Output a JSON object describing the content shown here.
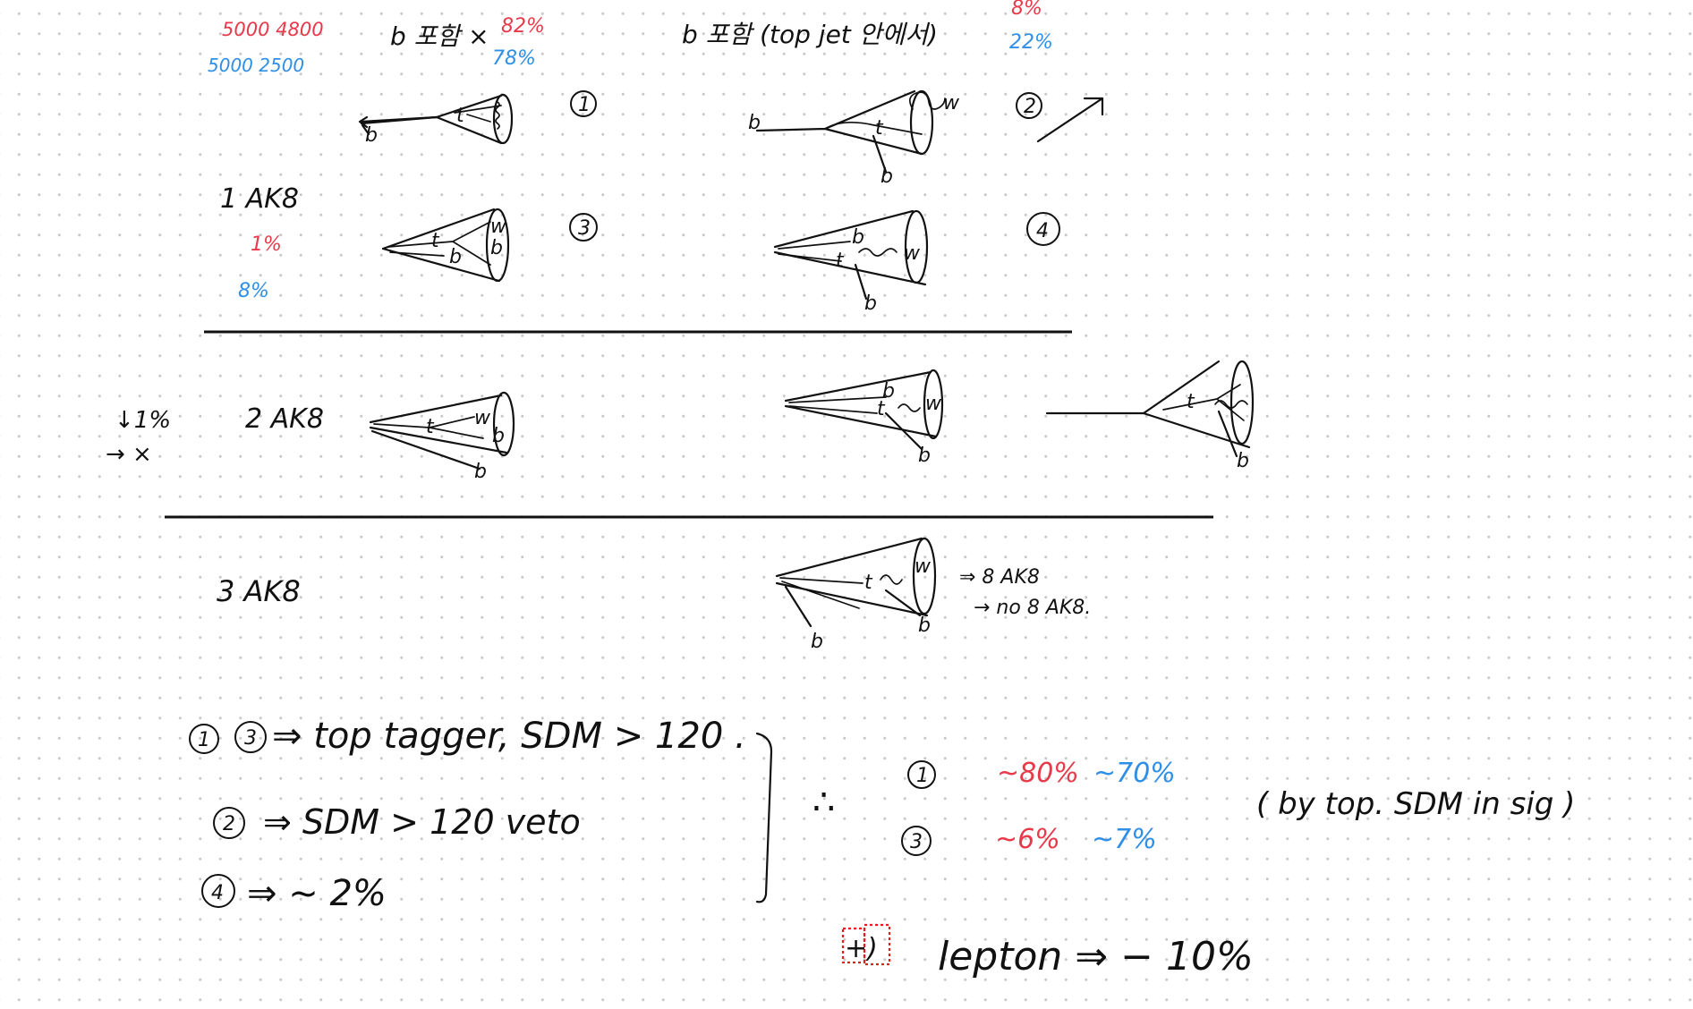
{
  "header": {
    "red_counts": "5000 4800",
    "blue_counts": "5000 2500",
    "col1_title": "b 포함 ×",
    "col1_red": "82%",
    "col1_blue": "78%",
    "col2_title": "b 포함 (top jet 안에서)",
    "col2_red": "8%",
    "col2_blue": "22%"
  },
  "rows": [
    {
      "label": "1 AK8",
      "red": "1%",
      "blue": "8%"
    },
    {
      "label": "2 AK8",
      "side_top": "↓1%",
      "side_bottom": "→ ×"
    },
    {
      "label": "3 AK8",
      "note1": "⇒ 8 AK8",
      "note2": "→ no 8 AK8."
    }
  ],
  "topology_numbers": [
    "1",
    "2",
    "3",
    "4"
  ],
  "jet_labels": {
    "top": "t",
    "bottom": "b",
    "w": "w"
  },
  "summary": {
    "line1_marks": [
      "1",
      "3"
    ],
    "line1_text": "⇒ top tagger, SDM > 120 .",
    "line2_mark": "2",
    "line2_text": "⇒ SDM > 120 veto",
    "line3_mark": "4",
    "line3_text": "⇒ ~ 2%",
    "therefore": "∴",
    "result1_mark": "1",
    "result1_red": "~80%",
    "result1_blue": "~70%",
    "result3_mark": "3",
    "result3_red": "~6%",
    "result3_blue": "~7%",
    "note": "( by top. SDM in sig )",
    "extra_mark": "+)",
    "lepton_text": "lepton ⇒ − 10%"
  },
  "colors": {
    "ink": "#111111",
    "red": "#e8394a",
    "blue": "#2f8fe6",
    "dots": "#c9c9c9"
  }
}
